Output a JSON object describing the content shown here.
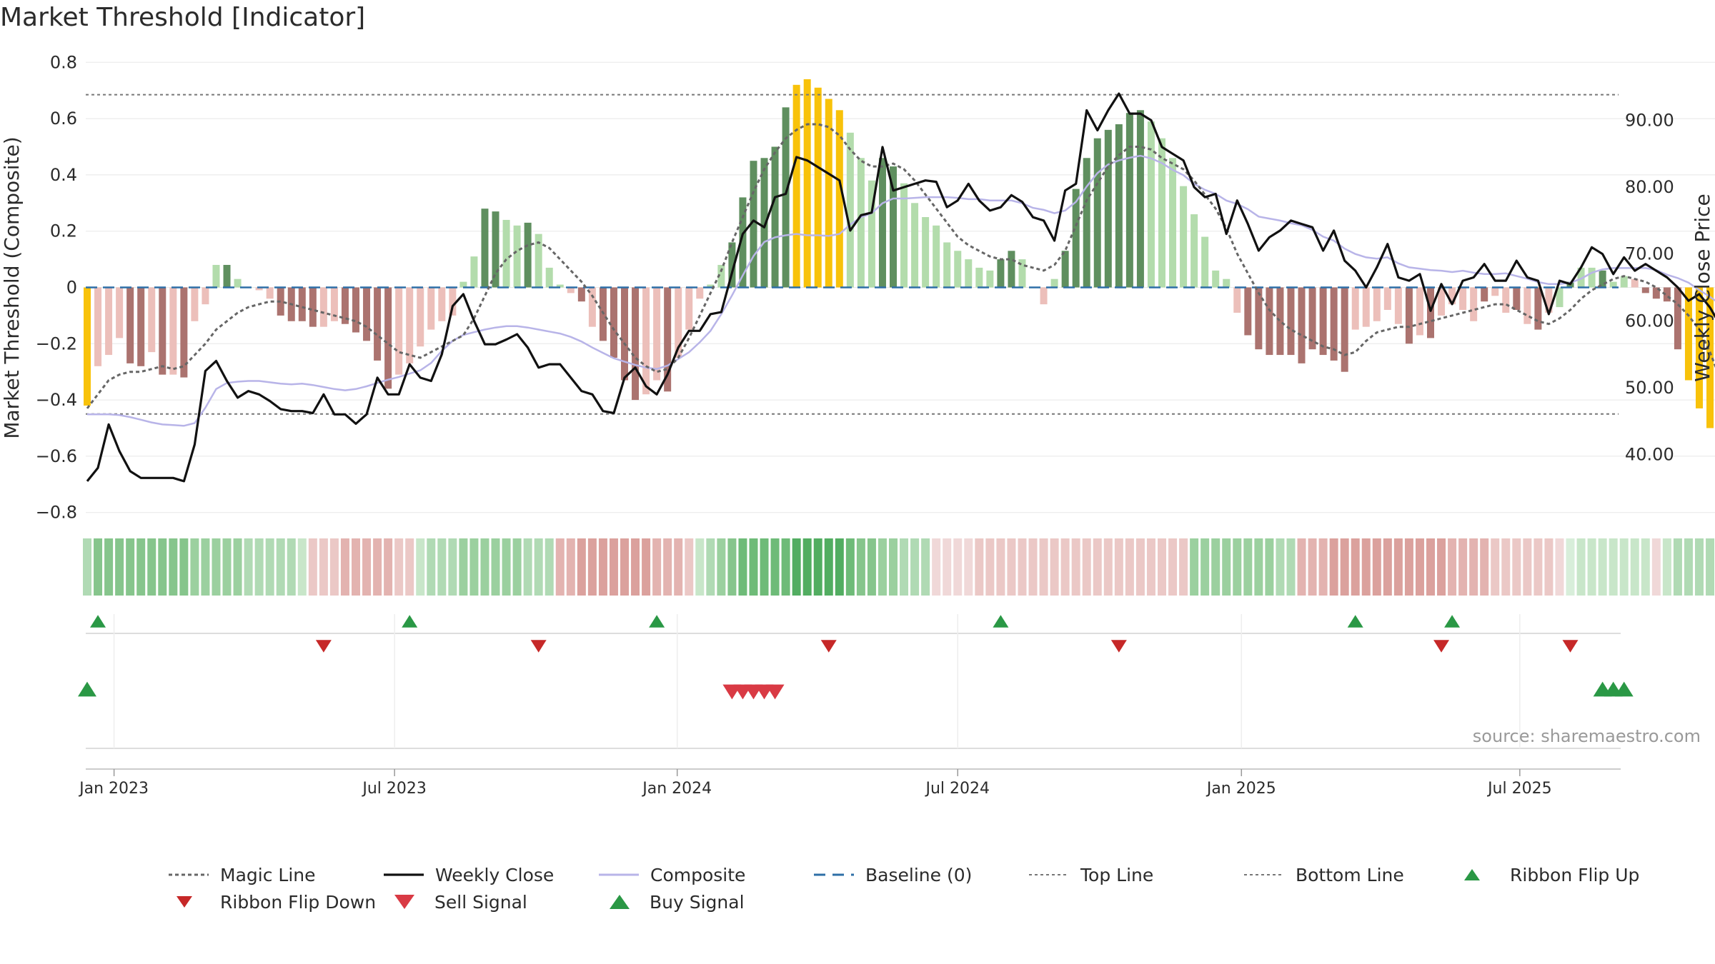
{
  "title": "Market Threshold [Indicator]",
  "source_note": "source: sharemaestro.com",
  "colors": {
    "bar_strong_up": "#5f8f5f",
    "bar_weak_up": "#b3dcac",
    "bar_strong_down": "#ab736f",
    "bar_weak_down": "#ecbfba",
    "bar_extreme": "#f8c20a",
    "weekly_close": "#111111",
    "composite": "#b8b4e8",
    "magic_line": "#666666",
    "baseline": "#2e6fa7",
    "threshold_lines": "#777777",
    "buy_marker": "#2a9845",
    "sell_marker": "#d93a44",
    "ribbon_flip_down": "#c62828",
    "ribbon_flip_up": "#2a9845"
  },
  "chart_data": {
    "type": "bar",
    "title": "Market Threshold [Indicator]",
    "ylabel": "Market Threshold (Composite)",
    "y2label": "Weekly Close Price",
    "ylim": [
      -0.85,
      0.82
    ],
    "y2lim": [
      32.7,
      100.6
    ],
    "yticks": [
      {
        "v": 0.8,
        "label": "0.8"
      },
      {
        "v": 0.6,
        "label": "0.6"
      },
      {
        "v": 0.4,
        "label": "0.4"
      },
      {
        "v": 0.2,
        "label": "0.2"
      },
      {
        "v": 0.0,
        "label": "0"
      },
      {
        "v": -0.2,
        "label": "−0.2"
      },
      {
        "v": -0.4,
        "label": "−0.4"
      },
      {
        "v": -0.6,
        "label": "−0.6"
      },
      {
        "v": -0.8,
        "label": "−0.8"
      }
    ],
    "y2ticks": [
      {
        "v": 90,
        "label": "90.00"
      },
      {
        "v": 80,
        "label": "80.00"
      },
      {
        "v": 70,
        "label": "70.00"
      },
      {
        "v": 60,
        "label": "60.00"
      },
      {
        "v": 50,
        "label": "50.00"
      },
      {
        "v": 40,
        "label": "40.00"
      }
    ],
    "xticks": [
      {
        "week": 2.5,
        "label": "Jan 2023"
      },
      {
        "week": 28.6,
        "label": "Jul 2023"
      },
      {
        "week": 54.9,
        "label": "Jan 2024"
      },
      {
        "week": 81.0,
        "label": "Jul 2024"
      },
      {
        "week": 107.4,
        "label": "Jan 2025"
      },
      {
        "week": 133.3,
        "label": "Jul 2025"
      }
    ],
    "top_line": 0.685,
    "bottom_line": -0.45,
    "baseline": 0,
    "composite": [
      -0.42,
      -0.28,
      -0.24,
      -0.18,
      -0.27,
      -0.28,
      -0.23,
      -0.31,
      -0.31,
      -0.32,
      -0.12,
      -0.06,
      0.08,
      0.08,
      0.03,
      0.0,
      -0.01,
      -0.04,
      -0.1,
      -0.12,
      -0.12,
      -0.14,
      -0.14,
      -0.12,
      -0.13,
      -0.16,
      -0.19,
      -0.26,
      -0.36,
      -0.31,
      -0.27,
      -0.21,
      -0.15,
      -0.12,
      -0.1,
      0.02,
      0.11,
      0.28,
      0.27,
      0.24,
      0.22,
      0.23,
      0.19,
      0.07,
      0.01,
      -0.02,
      -0.05,
      -0.14,
      -0.19,
      -0.25,
      -0.33,
      -0.4,
      -0.38,
      -0.33,
      -0.37,
      -0.25,
      -0.15,
      -0.04,
      0.01,
      0.08,
      0.16,
      0.32,
      0.45,
      0.46,
      0.5,
      0.64,
      0.72,
      0.74,
      0.71,
      0.67,
      0.63,
      0.55,
      0.46,
      0.38,
      0.46,
      0.43,
      0.37,
      0.3,
      0.25,
      0.22,
      0.16,
      0.13,
      0.1,
      0.07,
      0.06,
      0.1,
      0.13,
      0.1,
      0.0,
      -0.06,
      0.03,
      0.13,
      0.35,
      0.46,
      0.53,
      0.56,
      0.58,
      0.62,
      0.63,
      0.59,
      0.53,
      0.46,
      0.36,
      0.26,
      0.18,
      0.06,
      0.03,
      -0.09,
      -0.17,
      -0.22,
      -0.24,
      -0.24,
      -0.24,
      -0.27,
      -0.22,
      -0.24,
      -0.26,
      -0.3,
      -0.15,
      -0.14,
      -0.12,
      -0.08,
      -0.13,
      -0.2,
      -0.17,
      -0.18,
      -0.1,
      -0.06,
      -0.08,
      -0.12,
      -0.05,
      -0.03,
      -0.09,
      -0.08,
      -0.13,
      -0.15,
      -0.09,
      -0.07,
      0.02,
      0.07,
      0.07,
      0.06,
      0.02,
      0.04,
      0.03,
      -0.02,
      -0.04,
      -0.05,
      -0.22,
      -0.33,
      -0.43,
      -0.5,
      -0.56
    ],
    "bar_kind": [
      "extreme",
      "weak_down",
      "weak_down",
      "weak_down",
      "strong_down",
      "strong_down",
      "weak_down",
      "strong_down",
      "weak_down",
      "strong_down",
      "weak_down",
      "weak_down",
      "weak_up",
      "strong_up",
      "weak_up",
      "weak_up",
      "weak_down",
      "weak_down",
      "strong_down",
      "strong_down",
      "strong_down",
      "strong_down",
      "weak_down",
      "weak_down",
      "strong_down",
      "strong_down",
      "strong_down",
      "strong_down",
      "strong_down",
      "weak_down",
      "weak_down",
      "weak_down",
      "weak_down",
      "weak_down",
      "weak_down",
      "weak_up",
      "weak_up",
      "strong_up",
      "strong_up",
      "weak_up",
      "weak_up",
      "strong_up",
      "weak_up",
      "weak_up",
      "weak_up",
      "weak_down",
      "strong_down",
      "weak_down",
      "strong_down",
      "strong_down",
      "strong_down",
      "strong_down",
      "weak_down",
      "weak_down",
      "strong_down",
      "weak_down",
      "weak_down",
      "weak_down",
      "weak_up",
      "weak_up",
      "strong_up",
      "strong_up",
      "strong_up",
      "strong_up",
      "strong_up",
      "strong_up",
      "extreme",
      "extreme",
      "extreme",
      "extreme",
      "extreme",
      "weak_up",
      "weak_up",
      "weak_up",
      "strong_up",
      "strong_up",
      "weak_up",
      "weak_up",
      "weak_up",
      "weak_up",
      "weak_up",
      "weak_up",
      "weak_up",
      "weak_up",
      "weak_up",
      "strong_up",
      "strong_up",
      "weak_up",
      "weak_down",
      "weak_down",
      "weak_up",
      "strong_up",
      "strong_up",
      "strong_up",
      "strong_up",
      "strong_up",
      "strong_up",
      "strong_up",
      "strong_up",
      "weak_up",
      "weak_up",
      "weak_up",
      "weak_up",
      "weak_up",
      "weak_up",
      "weak_up",
      "weak_up",
      "weak_down",
      "strong_down",
      "strong_down",
      "strong_down",
      "strong_down",
      "strong_down",
      "strong_down",
      "strong_down",
      "strong_down",
      "strong_down",
      "strong_down",
      "weak_down",
      "weak_down",
      "weak_down",
      "weak_down",
      "weak_down",
      "strong_down",
      "weak_down",
      "strong_down",
      "weak_down",
      "weak_down",
      "weak_down",
      "weak_down",
      "strong_down",
      "weak_down",
      "weak_down",
      "strong_down",
      "weak_down",
      "strong_down",
      "weak_down",
      "weak_up",
      "strong_up",
      "weak_up",
      "weak_up",
      "strong_up",
      "weak_up",
      "weak_up",
      "weak_down",
      "strong_down",
      "strong_down",
      "strong_down",
      "strong_down",
      "extreme",
      "extreme",
      "extreme"
    ],
    "weekly_close": [
      36.0,
      38.0,
      44.5,
      40.5,
      37.5,
      36.5,
      36.5,
      36.5,
      36.5,
      36.0,
      41.5,
      52.5,
      54.0,
      51.0,
      48.5,
      49.5,
      49.0,
      48.0,
      46.8,
      46.5,
      46.5,
      46.2,
      49.0,
      46.0,
      46.0,
      44.6,
      46.0,
      51.5,
      49.0,
      49.0,
      53.5,
      51.5,
      51.0,
      55.0,
      62.2,
      64.0,
      60.0,
      56.5,
      56.5,
      57.2,
      58.0,
      56.0,
      53.0,
      53.5,
      53.5,
      51.5,
      49.5,
      49.0,
      46.5,
      46.2,
      51.5,
      53.0,
      50.2,
      49.0,
      52.0,
      56.0,
      58.5,
      58.5,
      61.0,
      61.3,
      67.2,
      73.0,
      75.0,
      74.0,
      78.5,
      79.0,
      84.5,
      84.0,
      83.0,
      82.0,
      81.0,
      73.5,
      75.8,
      76.2,
      86.0,
      79.5,
      80.0,
      80.5,
      81.0,
      80.8,
      77.0,
      78.0,
      80.5,
      78.0,
      76.5,
      77.0,
      78.8,
      77.8,
      75.5,
      75.0,
      72.0,
      79.5,
      80.5,
      91.5,
      88.5,
      91.5,
      94.0,
      91.0,
      91.0,
      90.0,
      86.0,
      85.0,
      84.0,
      80.0,
      78.5,
      79.0,
      73.0,
      78.0,
      74.5,
      70.5,
      72.5,
      73.5,
      75.0,
      74.5,
      74.0,
      70.5,
      73.5,
      69.0,
      67.5,
      65.0,
      68.0,
      71.5,
      66.5,
      66.0,
      67.0,
      61.5,
      65.5,
      62.5,
      66.0,
      66.5,
      68.5,
      66.0,
      66.0,
      69.0,
      66.5,
      66.0,
      61.0,
      66.0,
      65.5,
      68.0,
      71.0,
      70.0,
      67.0,
      69.5,
      67.5,
      68.5,
      67.5,
      66.5,
      65.0,
      63.0,
      64.0,
      62.0,
      59.2,
      56.5,
      56.5,
      56.3,
      55.7
    ],
    "composite_line": [
      46.0,
      46.0,
      46.0,
      45.9,
      45.6,
      45.2,
      44.8,
      44.5,
      44.4,
      44.3,
      44.7,
      47.0,
      49.8,
      50.7,
      50.9,
      51.0,
      51.0,
      50.8,
      50.6,
      50.5,
      50.6,
      50.4,
      50.1,
      49.8,
      49.6,
      49.8,
      50.2,
      50.7,
      51.2,
      51.6,
      52.1,
      52.6,
      53.7,
      55.5,
      57.0,
      57.9,
      58.3,
      58.7,
      59.0,
      59.2,
      59.2,
      59.0,
      58.7,
      58.4,
      58.1,
      57.6,
      56.9,
      56.0,
      55.2,
      54.4,
      53.9,
      53.4,
      53.0,
      52.8,
      53.3,
      54.3,
      55.3,
      56.8,
      58.5,
      61.0,
      63.8,
      66.8,
      69.7,
      71.8,
      72.5,
      72.8,
      73.0,
      72.8,
      72.8,
      72.7,
      73.0,
      74.4,
      75.5,
      76.1,
      77.6,
      78.3,
      78.3,
      78.4,
      78.5,
      78.5,
      78.5,
      78.4,
      78.2,
      78.2,
      78.0,
      78.0,
      78.0,
      77.6,
      76.9,
      76.6,
      76.1,
      76.5,
      77.8,
      80.1,
      82.1,
      83.4,
      84.0,
      84.4,
      84.7,
      84.3,
      83.6,
      82.6,
      81.8,
      80.5,
      79.6,
      79.0,
      78.0,
      77.5,
      76.7,
      75.6,
      75.3,
      75.0,
      74.6,
      74.3,
      73.6,
      72.6,
      72.0,
      70.8,
      70.0,
      69.5,
      69.3,
      69.5,
      68.6,
      68.0,
      67.8,
      67.6,
      67.5,
      67.3,
      67.5,
      67.2,
      67.0,
      67.0,
      67.1,
      66.7,
      66.3,
      65.8,
      65.5,
      65.5,
      65.7,
      66.3,
      67.2,
      67.7,
      67.9,
      67.9,
      67.9,
      67.9,
      67.6,
      66.9,
      66.4,
      65.7,
      64.6,
      63.6,
      62.4,
      61.1,
      60.2
    ],
    "magic_line": [
      -0.43,
      -0.38,
      -0.33,
      -0.31,
      -0.3,
      -0.3,
      -0.29,
      -0.28,
      -0.29,
      -0.28,
      -0.24,
      -0.2,
      -0.15,
      -0.12,
      -0.09,
      -0.07,
      -0.06,
      -0.05,
      -0.05,
      -0.06,
      -0.07,
      -0.08,
      -0.09,
      -0.1,
      -0.11,
      -0.12,
      -0.14,
      -0.17,
      -0.2,
      -0.23,
      -0.24,
      -0.25,
      -0.23,
      -0.21,
      -0.19,
      -0.17,
      -0.11,
      -0.03,
      0.05,
      0.1,
      0.13,
      0.15,
      0.16,
      0.14,
      0.1,
      0.06,
      0.02,
      -0.03,
      -0.09,
      -0.15,
      -0.2,
      -0.25,
      -0.28,
      -0.3,
      -0.29,
      -0.25,
      -0.18,
      -0.1,
      -0.02,
      0.06,
      0.16,
      0.25,
      0.34,
      0.42,
      0.48,
      0.53,
      0.56,
      0.58,
      0.58,
      0.57,
      0.54,
      0.49,
      0.45,
      0.43,
      0.43,
      0.44,
      0.42,
      0.38,
      0.33,
      0.28,
      0.23,
      0.18,
      0.15,
      0.13,
      0.11,
      0.1,
      0.1,
      0.08,
      0.07,
      0.06,
      0.08,
      0.13,
      0.22,
      0.31,
      0.37,
      0.43,
      0.47,
      0.5,
      0.5,
      0.49,
      0.46,
      0.44,
      0.42,
      0.38,
      0.33,
      0.28,
      0.21,
      0.12,
      0.05,
      -0.02,
      -0.08,
      -0.12,
      -0.15,
      -0.17,
      -0.19,
      -0.21,
      -0.22,
      -0.24,
      -0.23,
      -0.19,
      -0.16,
      -0.15,
      -0.14,
      -0.14,
      -0.13,
      -0.12,
      -0.11,
      -0.1,
      -0.09,
      -0.08,
      -0.07,
      -0.06,
      -0.06,
      -0.08,
      -0.1,
      -0.12,
      -0.13,
      -0.11,
      -0.08,
      -0.04,
      -0.01,
      0.01,
      0.03,
      0.04,
      0.03,
      0.02,
      0.0,
      -0.03,
      -0.06,
      -0.1,
      -0.15,
      -0.23,
      -0.33
    ],
    "ribbon": [
      3,
      5,
      5,
      5,
      5,
      5,
      5,
      5,
      5,
      5,
      4,
      4,
      4,
      4,
      4,
      3,
      3,
      3,
      3,
      3,
      2,
      -2,
      -2,
      -2,
      -3,
      -3,
      -3,
      -3,
      -3,
      -2,
      -2,
      2,
      3,
      3,
      3,
      4,
      4,
      4,
      4,
      4,
      4,
      3,
      3,
      3,
      -3,
      -3,
      -4,
      -4,
      -4,
      -4,
      -4,
      -4,
      -4,
      -3,
      -3,
      -3,
      -2,
      2,
      3,
      4,
      5,
      6,
      6,
      6,
      6,
      6,
      7,
      7,
      7,
      7,
      7,
      6,
      5,
      5,
      4,
      4,
      3,
      3,
      3,
      -1,
      -1,
      -1,
      -1,
      -2,
      -2,
      -2,
      -2,
      -2,
      -2,
      -2,
      -2,
      -2,
      -2,
      -2,
      -2,
      -2,
      -2,
      -2,
      -2,
      -2,
      -2,
      -2,
      -2,
      4,
      4,
      4,
      4,
      4,
      4,
      4,
      4,
      3,
      3,
      -3,
      -3,
      -3,
      -4,
      -4,
      -4,
      -4,
      -4,
      -4,
      -4,
      -4,
      -4,
      -4,
      -4,
      -3,
      -3,
      -3,
      -3,
      -2,
      -2,
      -2,
      -2,
      -2,
      -2,
      -1,
      1,
      2,
      2,
      2,
      2,
      2,
      2,
      2,
      -1,
      2,
      3,
      3,
      3,
      3,
      2,
      2,
      2,
      2,
      2,
      2,
      2,
      -1,
      -2,
      -2,
      -3,
      -3,
      -4
    ],
    "ribbon_flip_up_weeks": [
      1,
      30,
      53,
      85,
      118,
      127
    ],
    "ribbon_flip_down_weeks": [
      22,
      42,
      69,
      96,
      126,
      138
    ],
    "sell_signal_weeks": [
      60,
      61,
      62,
      63,
      64
    ],
    "buy_signal_weeks": [
      0,
      141,
      142,
      143
    ],
    "legend": [
      {
        "key": "magic",
        "label": "Magic Line"
      },
      {
        "key": "close",
        "label": "Weekly Close"
      },
      {
        "key": "composite",
        "label": "Composite"
      },
      {
        "key": "baseline",
        "label": "Baseline (0)"
      },
      {
        "key": "top",
        "label": "Top Line"
      },
      {
        "key": "bottom",
        "label": "Bottom Line"
      },
      {
        "key": "flipup",
        "label": "Ribbon Flip Up"
      },
      {
        "key": "flipdown",
        "label": "Ribbon Flip Down"
      },
      {
        "key": "sell",
        "label": "Sell Signal"
      },
      {
        "key": "buy",
        "label": "Buy Signal"
      }
    ]
  }
}
